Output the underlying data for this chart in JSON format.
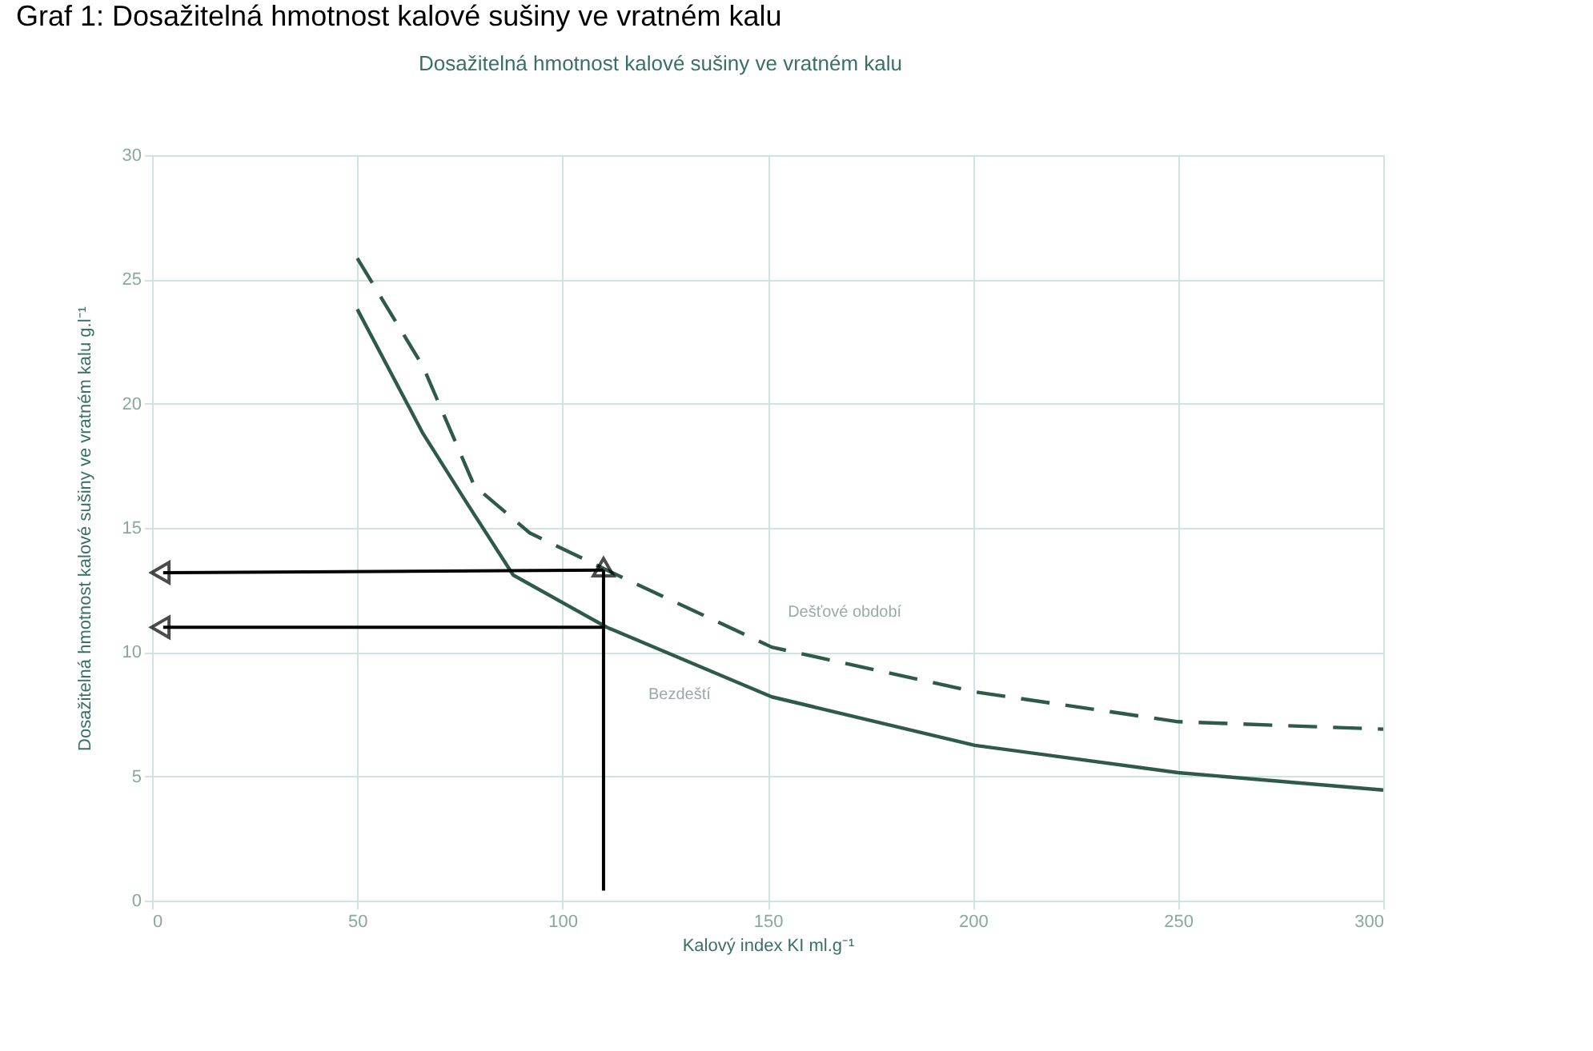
{
  "chart_data": {
    "type": "line",
    "title": "Dosažitelná hmotnost kalové sušiny ve vratném kalu",
    "annotations": [
      "Graf 1: Dosažitelná hmotnost kalové sušiny ve vratném kalu"
    ],
    "xlabel": "Kalový index KI ml.g⁻¹",
    "ylabel": "Dosažitelná hmotnost kalové sušiny ve vratném kalu g.l⁻¹",
    "xlim": [
      0,
      300
    ],
    "xticks": [
      0,
      50,
      100,
      150,
      200,
      250,
      300
    ],
    "ylim": [
      0,
      30
    ],
    "yticks": [
      0,
      5,
      10,
      15,
      20,
      25,
      30
    ],
    "grid": true,
    "series": [
      {
        "name": "Dešťové období",
        "color": "#2f5a4a",
        "line_style": "dashed",
        "x": [
          50,
          66,
          78.5,
          92,
          110.8,
          151,
          200.5,
          250,
          300
        ],
        "values": [
          25.85,
          21.5,
          16.7,
          14.8,
          13.3,
          10.2,
          8.4,
          7.2,
          6.9
        ]
      },
      {
        "name": "Bezdeští",
        "color": "#2f5a4a",
        "line_style": "solid",
        "x": [
          50,
          66,
          76.7,
          88,
          110.8,
          151,
          200.5,
          250,
          300
        ],
        "values": [
          23.8,
          18.8,
          16.0,
          13.1,
          11.0,
          8.2,
          6.25,
          5.15,
          4.45
        ]
      },
      {
        "color": "#000000",
        "line_style": "solid",
        "marker": "triangle",
        "x": [
          110,
          110
        ],
        "values": [
          0.4,
          13.3
        ]
      },
      {
        "color": "#000000",
        "line_style": "solid",
        "marker": "triangle",
        "x": [
          110,
          2.7
        ],
        "values": [
          13.3,
          13.2
        ]
      },
      {
        "color": "#000000",
        "line_style": "solid",
        "marker": "triangle",
        "x": [
          110,
          2.7
        ],
        "values": [
          11.0,
          11.0
        ]
      }
    ]
  }
}
